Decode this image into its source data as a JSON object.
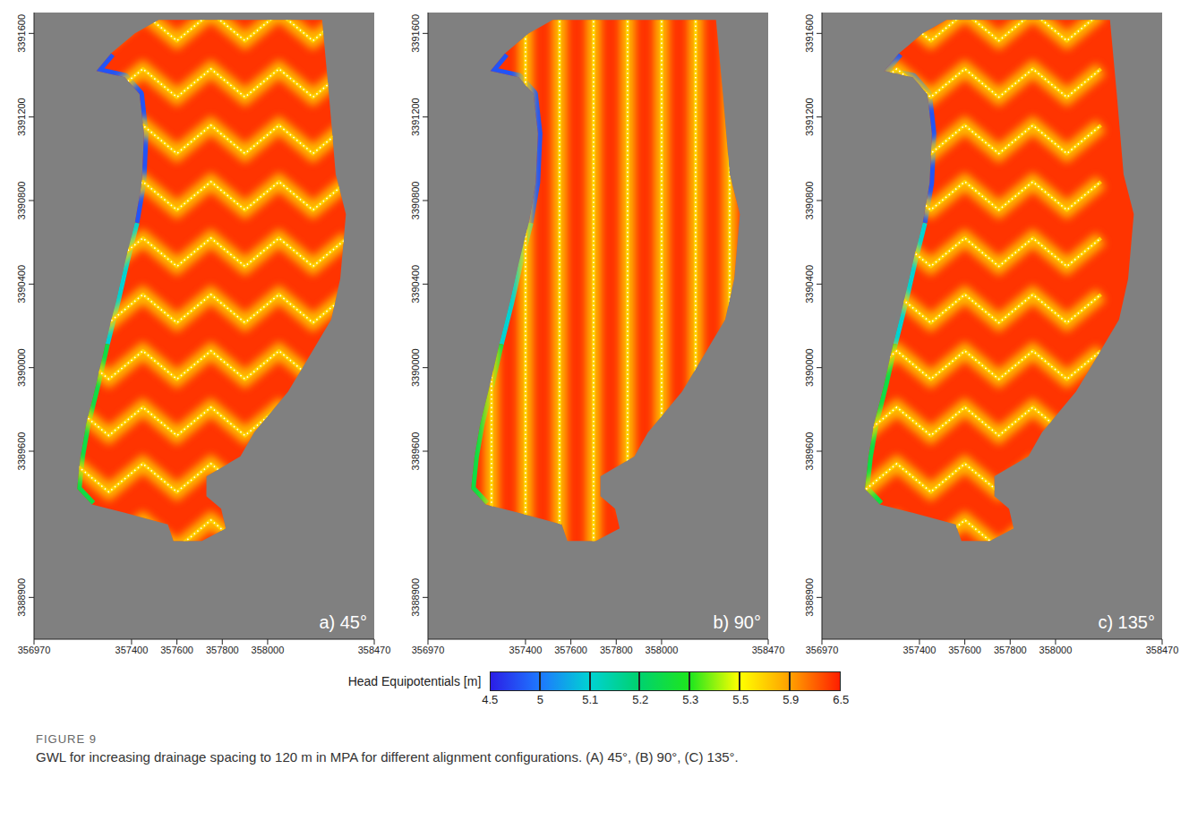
{
  "figure": "FIGURE 9",
  "caption": "GWL for increasing drainage spacing to 120 m in MPA for different alignment configurations. (A) 45°, (B) 90°, (C) 135°.",
  "colorbar": {
    "label": "Head Equipotentials [m]",
    "ticks": [
      4.5,
      5,
      5.1,
      5.2,
      5.3,
      5.5,
      5.9,
      6.5
    ],
    "colors": [
      "#2b1ee6",
      "#1e78ff",
      "#00d2d2",
      "#00d26e",
      "#1ee61e",
      "#ffff00",
      "#ffa000",
      "#ff1e00"
    ]
  },
  "model_area": {
    "head": 6.4,
    "outline": [
      [
        357520,
        3391665
      ],
      [
        358240,
        3391665
      ],
      [
        358270,
        3391310
      ],
      [
        358300,
        3390925
      ],
      [
        358345,
        3390735
      ],
      [
        358320,
        3390425
      ],
      [
        358280,
        3390230
      ],
      [
        358195,
        3390075
      ],
      [
        358090,
        3389885
      ],
      [
        357940,
        3389690
      ],
      [
        357880,
        3389575
      ],
      [
        357730,
        3389480
      ],
      [
        357730,
        3389385
      ],
      [
        357795,
        3389325
      ],
      [
        357815,
        3389230
      ],
      [
        357710,
        3389170
      ],
      [
        357585,
        3389170
      ],
      [
        357560,
        3389250
      ],
      [
        357370,
        3389305
      ],
      [
        357225,
        3389345
      ],
      [
        357160,
        3389420
      ],
      [
        357175,
        3389575
      ],
      [
        357200,
        3389730
      ],
      [
        357245,
        3389925
      ],
      [
        357285,
        3390115
      ],
      [
        357330,
        3390310
      ],
      [
        357370,
        3390500
      ],
      [
        357415,
        3390695
      ],
      [
        357445,
        3390885
      ],
      [
        357455,
        3391120
      ],
      [
        357435,
        3391310
      ],
      [
        357370,
        3391390
      ],
      [
        357245,
        3391420
      ],
      [
        357310,
        3391505
      ],
      [
        357415,
        3391600
      ]
    ],
    "boundary": [
      {
        "head": 4.8,
        "points": [
          [
            357310,
            3391505
          ],
          [
            357245,
            3391420
          ],
          [
            357370,
            3391390
          ],
          [
            357435,
            3391310
          ],
          [
            357455,
            3391120
          ],
          [
            357445,
            3390885
          ],
          [
            357415,
            3390695
          ]
        ]
      },
      {
        "head": 5.1,
        "points": [
          [
            357415,
            3390695
          ],
          [
            357370,
            3390500
          ],
          [
            357330,
            3390310
          ],
          [
            357285,
            3390115
          ]
        ]
      },
      {
        "head": 5.25,
        "points": [
          [
            357285,
            3390115
          ],
          [
            357245,
            3389925
          ],
          [
            357200,
            3389730
          ],
          [
            357175,
            3389575
          ],
          [
            357160,
            3389420
          ],
          [
            357225,
            3389345
          ]
        ]
      }
    ]
  },
  "chart_data": [
    {
      "type": "map",
      "title": "a) 45°",
      "xlim": [
        356970,
        358470
      ],
      "xticks": [
        356970,
        357400,
        357600,
        357800,
        358000,
        358470
      ],
      "ylim": [
        3388700,
        3391700
      ],
      "yticks": [
        3388900,
        3389600,
        3390000,
        3390400,
        3390800,
        3391200,
        3391600
      ],
      "drains": {
        "head": 5.7,
        "lines": [
          [
            [
              357150,
              3391700
            ],
            [
              357300,
              3391565
            ],
            [
              357450,
              3391700
            ],
            [
              357600,
              3391565
            ],
            [
              357750,
              3391700
            ],
            [
              357900,
              3391565
            ],
            [
              358050,
              3391700
            ],
            [
              358200,
              3391565
            ],
            [
              358350,
              3391700
            ]
          ],
          [
            [
              357150,
              3391430
            ],
            [
              357300,
              3391295
            ],
            [
              357450,
              3391430
            ],
            [
              357600,
              3391295
            ],
            [
              357750,
              3391430
            ],
            [
              357900,
              3391295
            ],
            [
              358050,
              3391430
            ],
            [
              358200,
              3391295
            ],
            [
              358350,
              3391430
            ]
          ],
          [
            [
              357150,
              3391160
            ],
            [
              357300,
              3391025
            ],
            [
              357450,
              3391160
            ],
            [
              357600,
              3391025
            ],
            [
              357750,
              3391160
            ],
            [
              357900,
              3391025
            ],
            [
              358050,
              3391160
            ],
            [
              358200,
              3391025
            ],
            [
              358350,
              3391160
            ]
          ],
          [
            [
              357150,
              3390890
            ],
            [
              357300,
              3390755
            ],
            [
              357450,
              3390890
            ],
            [
              357600,
              3390755
            ],
            [
              357750,
              3390890
            ],
            [
              357900,
              3390755
            ],
            [
              358050,
              3390890
            ],
            [
              358200,
              3390755
            ],
            [
              358350,
              3390890
            ]
          ],
          [
            [
              357150,
              3390620
            ],
            [
              357300,
              3390485
            ],
            [
              357450,
              3390620
            ],
            [
              357600,
              3390485
            ],
            [
              357750,
              3390620
            ],
            [
              357900,
              3390485
            ],
            [
              358050,
              3390620
            ],
            [
              358200,
              3390485
            ],
            [
              358350,
              3390620
            ]
          ],
          [
            [
              357150,
              3390350
            ],
            [
              357300,
              3390215
            ],
            [
              357450,
              3390350
            ],
            [
              357600,
              3390215
            ],
            [
              357750,
              3390350
            ],
            [
              357900,
              3390215
            ],
            [
              358050,
              3390350
            ],
            [
              358200,
              3390215
            ],
            [
              358350,
              3390350
            ]
          ],
          [
            [
              357150,
              3390080
            ],
            [
              357300,
              3389945
            ],
            [
              357450,
              3390080
            ],
            [
              357600,
              3389945
            ],
            [
              357750,
              3390080
            ],
            [
              357900,
              3389945
            ],
            [
              358050,
              3390080
            ],
            [
              358200,
              3389945
            ],
            [
              358350,
              3390080
            ]
          ],
          [
            [
              357150,
              3389810
            ],
            [
              357300,
              3389675
            ],
            [
              357450,
              3389810
            ],
            [
              357600,
              3389675
            ],
            [
              357750,
              3389810
            ],
            [
              357900,
              3389675
            ],
            [
              358050,
              3389810
            ],
            [
              358200,
              3389675
            ],
            [
              358350,
              3389810
            ]
          ],
          [
            [
              357150,
              3389540
            ],
            [
              357300,
              3389405
            ],
            [
              357450,
              3389540
            ],
            [
              357600,
              3389405
            ],
            [
              357750,
              3389540
            ],
            [
              357900,
              3389405
            ],
            [
              358050,
              3389540
            ],
            [
              358200,
              3389405
            ],
            [
              358350,
              3389540
            ]
          ],
          [
            [
              357150,
              3389270
            ],
            [
              357300,
              3389135
            ],
            [
              357450,
              3389270
            ],
            [
              357600,
              3389135
            ],
            [
              357750,
              3389270
            ],
            [
              357900,
              3389135
            ],
            [
              358050,
              3389270
            ],
            [
              358200,
              3389135
            ],
            [
              358350,
              3389270
            ]
          ]
        ]
      }
    },
    {
      "type": "map",
      "title": "b) 90°",
      "xlim": [
        356970,
        358470
      ],
      "xticks": [
        356970,
        357400,
        357600,
        357800,
        358000,
        358470
      ],
      "ylim": [
        3388700,
        3391700
      ],
      "yticks": [
        3388900,
        3389600,
        3390000,
        3390400,
        3390800,
        3391200,
        3391600
      ],
      "drains": {
        "head": 5.7,
        "lines": [
          [
            [
              357250,
              3390100
            ],
            [
              357250,
              3389100
            ]
          ],
          [
            [
              357400,
              3391700
            ],
            [
              357400,
              3389100
            ]
          ],
          [
            [
              357550,
              3391700
            ],
            [
              357550,
              3389100
            ]
          ],
          [
            [
              357700,
              3391700
            ],
            [
              357700,
              3389100
            ]
          ],
          [
            [
              357850,
              3391700
            ],
            [
              357850,
              3389300
            ]
          ],
          [
            [
              358000,
              3391700
            ],
            [
              358000,
              3389400
            ]
          ],
          [
            [
              358150,
              3391700
            ],
            [
              358150,
              3389700
            ]
          ],
          [
            [
              358300,
              3391700
            ],
            [
              358300,
              3390100
            ]
          ]
        ]
      }
    },
    {
      "type": "map",
      "title": "c) 135°",
      "xlim": [
        356970,
        358470
      ],
      "xticks": [
        356970,
        357400,
        357600,
        357800,
        358000,
        358470
      ],
      "ylim": [
        3388700,
        3391700
      ],
      "yticks": [
        3388900,
        3389600,
        3390000,
        3390400,
        3390800,
        3391200,
        3391600
      ],
      "drains": {
        "head": 5.7,
        "lines": [
          [
            [
              357150,
              3391565
            ],
            [
              357300,
              3391700
            ],
            [
              357450,
              3391565
            ],
            [
              357600,
              3391700
            ],
            [
              357750,
              3391565
            ],
            [
              357900,
              3391700
            ],
            [
              358050,
              3391565
            ],
            [
              358200,
              3391700
            ]
          ],
          [
            [
              357150,
              3391295
            ],
            [
              357300,
              3391430
            ],
            [
              357450,
              3391295
            ],
            [
              357600,
              3391430
            ],
            [
              357750,
              3391295
            ],
            [
              357900,
              3391430
            ],
            [
              358050,
              3391295
            ],
            [
              358200,
              3391430
            ]
          ],
          [
            [
              357150,
              3391025
            ],
            [
              357300,
              3391160
            ],
            [
              357450,
              3391025
            ],
            [
              357600,
              3391160
            ],
            [
              357750,
              3391025
            ],
            [
              357900,
              3391160
            ],
            [
              358050,
              3391025
            ],
            [
              358200,
              3391160
            ]
          ],
          [
            [
              357150,
              3390755
            ],
            [
              357300,
              3390890
            ],
            [
              357450,
              3390755
            ],
            [
              357600,
              3390890
            ],
            [
              357750,
              3390755
            ],
            [
              357900,
              3390890
            ],
            [
              358050,
              3390755
            ],
            [
              358200,
              3390890
            ]
          ],
          [
            [
              357150,
              3390485
            ],
            [
              357300,
              3390620
            ],
            [
              357450,
              3390485
            ],
            [
              357600,
              3390620
            ],
            [
              357750,
              3390485
            ],
            [
              357900,
              3390620
            ],
            [
              358050,
              3390485
            ],
            [
              358200,
              3390620
            ]
          ],
          [
            [
              357150,
              3390215
            ],
            [
              357300,
              3390350
            ],
            [
              357450,
              3390215
            ],
            [
              357600,
              3390350
            ],
            [
              357750,
              3390215
            ],
            [
              357900,
              3390350
            ],
            [
              358050,
              3390215
            ],
            [
              358200,
              3390350
            ]
          ],
          [
            [
              357150,
              3389945
            ],
            [
              357300,
              3390080
            ],
            [
              357450,
              3389945
            ],
            [
              357600,
              3390080
            ],
            [
              357750,
              3389945
            ],
            [
              357900,
              3390080
            ],
            [
              358050,
              3389945
            ],
            [
              358200,
              3390080
            ]
          ],
          [
            [
              357150,
              3389675
            ],
            [
              357300,
              3389810
            ],
            [
              357450,
              3389675
            ],
            [
              357600,
              3389810
            ],
            [
              357750,
              3389675
            ],
            [
              357900,
              3389810
            ],
            [
              358050,
              3389675
            ],
            [
              358200,
              3389810
            ]
          ],
          [
            [
              357150,
              3389405
            ],
            [
              357300,
              3389540
            ],
            [
              357450,
              3389405
            ],
            [
              357600,
              3389540
            ],
            [
              357750,
              3389405
            ],
            [
              357900,
              3389540
            ],
            [
              358050,
              3389405
            ],
            [
              358200,
              3389540
            ]
          ],
          [
            [
              357150,
              3389135
            ],
            [
              357300,
              3389270
            ],
            [
              357450,
              3389135
            ],
            [
              357600,
              3389270
            ],
            [
              357750,
              3389135
            ],
            [
              357900,
              3389270
            ],
            [
              358050,
              3389135
            ],
            [
              358200,
              3389270
            ]
          ]
        ]
      }
    }
  ]
}
